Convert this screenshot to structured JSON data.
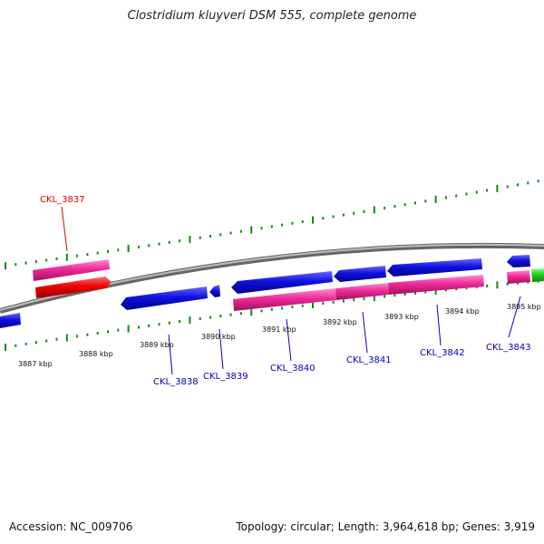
{
  "title": "Clostridium kluyveri DSM 555, complete genome",
  "footer": {
    "accession": "Accession: NC_009706",
    "summary": "Topology: circular; Length: 3,964,618 bp; Genes: 3,919"
  },
  "colors": {
    "backbone": "#888888",
    "tick": "#118811",
    "gene_forward_pink": "#ee2a9a",
    "gene_forward_red": "#ee0000",
    "gene_reverse_blue": "#1010e0",
    "gene_green": "#22cc22",
    "label_red": "#dd0000",
    "label_blue": "#0000bb"
  },
  "kbp_ticks": [
    "3887 kbp",
    "3888 kbp",
    "3889 kbp",
    "3890 kbp",
    "3891 kbp",
    "3892 kbp",
    "3893 kbp",
    "3894 kbp",
    "3895 kbp"
  ],
  "gene_labels": [
    "CKL_3837",
    "CKL_3838",
    "CKL_3839",
    "CKL_3840",
    "CKL_3841",
    "CKL_3842",
    "CKL_3843"
  ]
}
